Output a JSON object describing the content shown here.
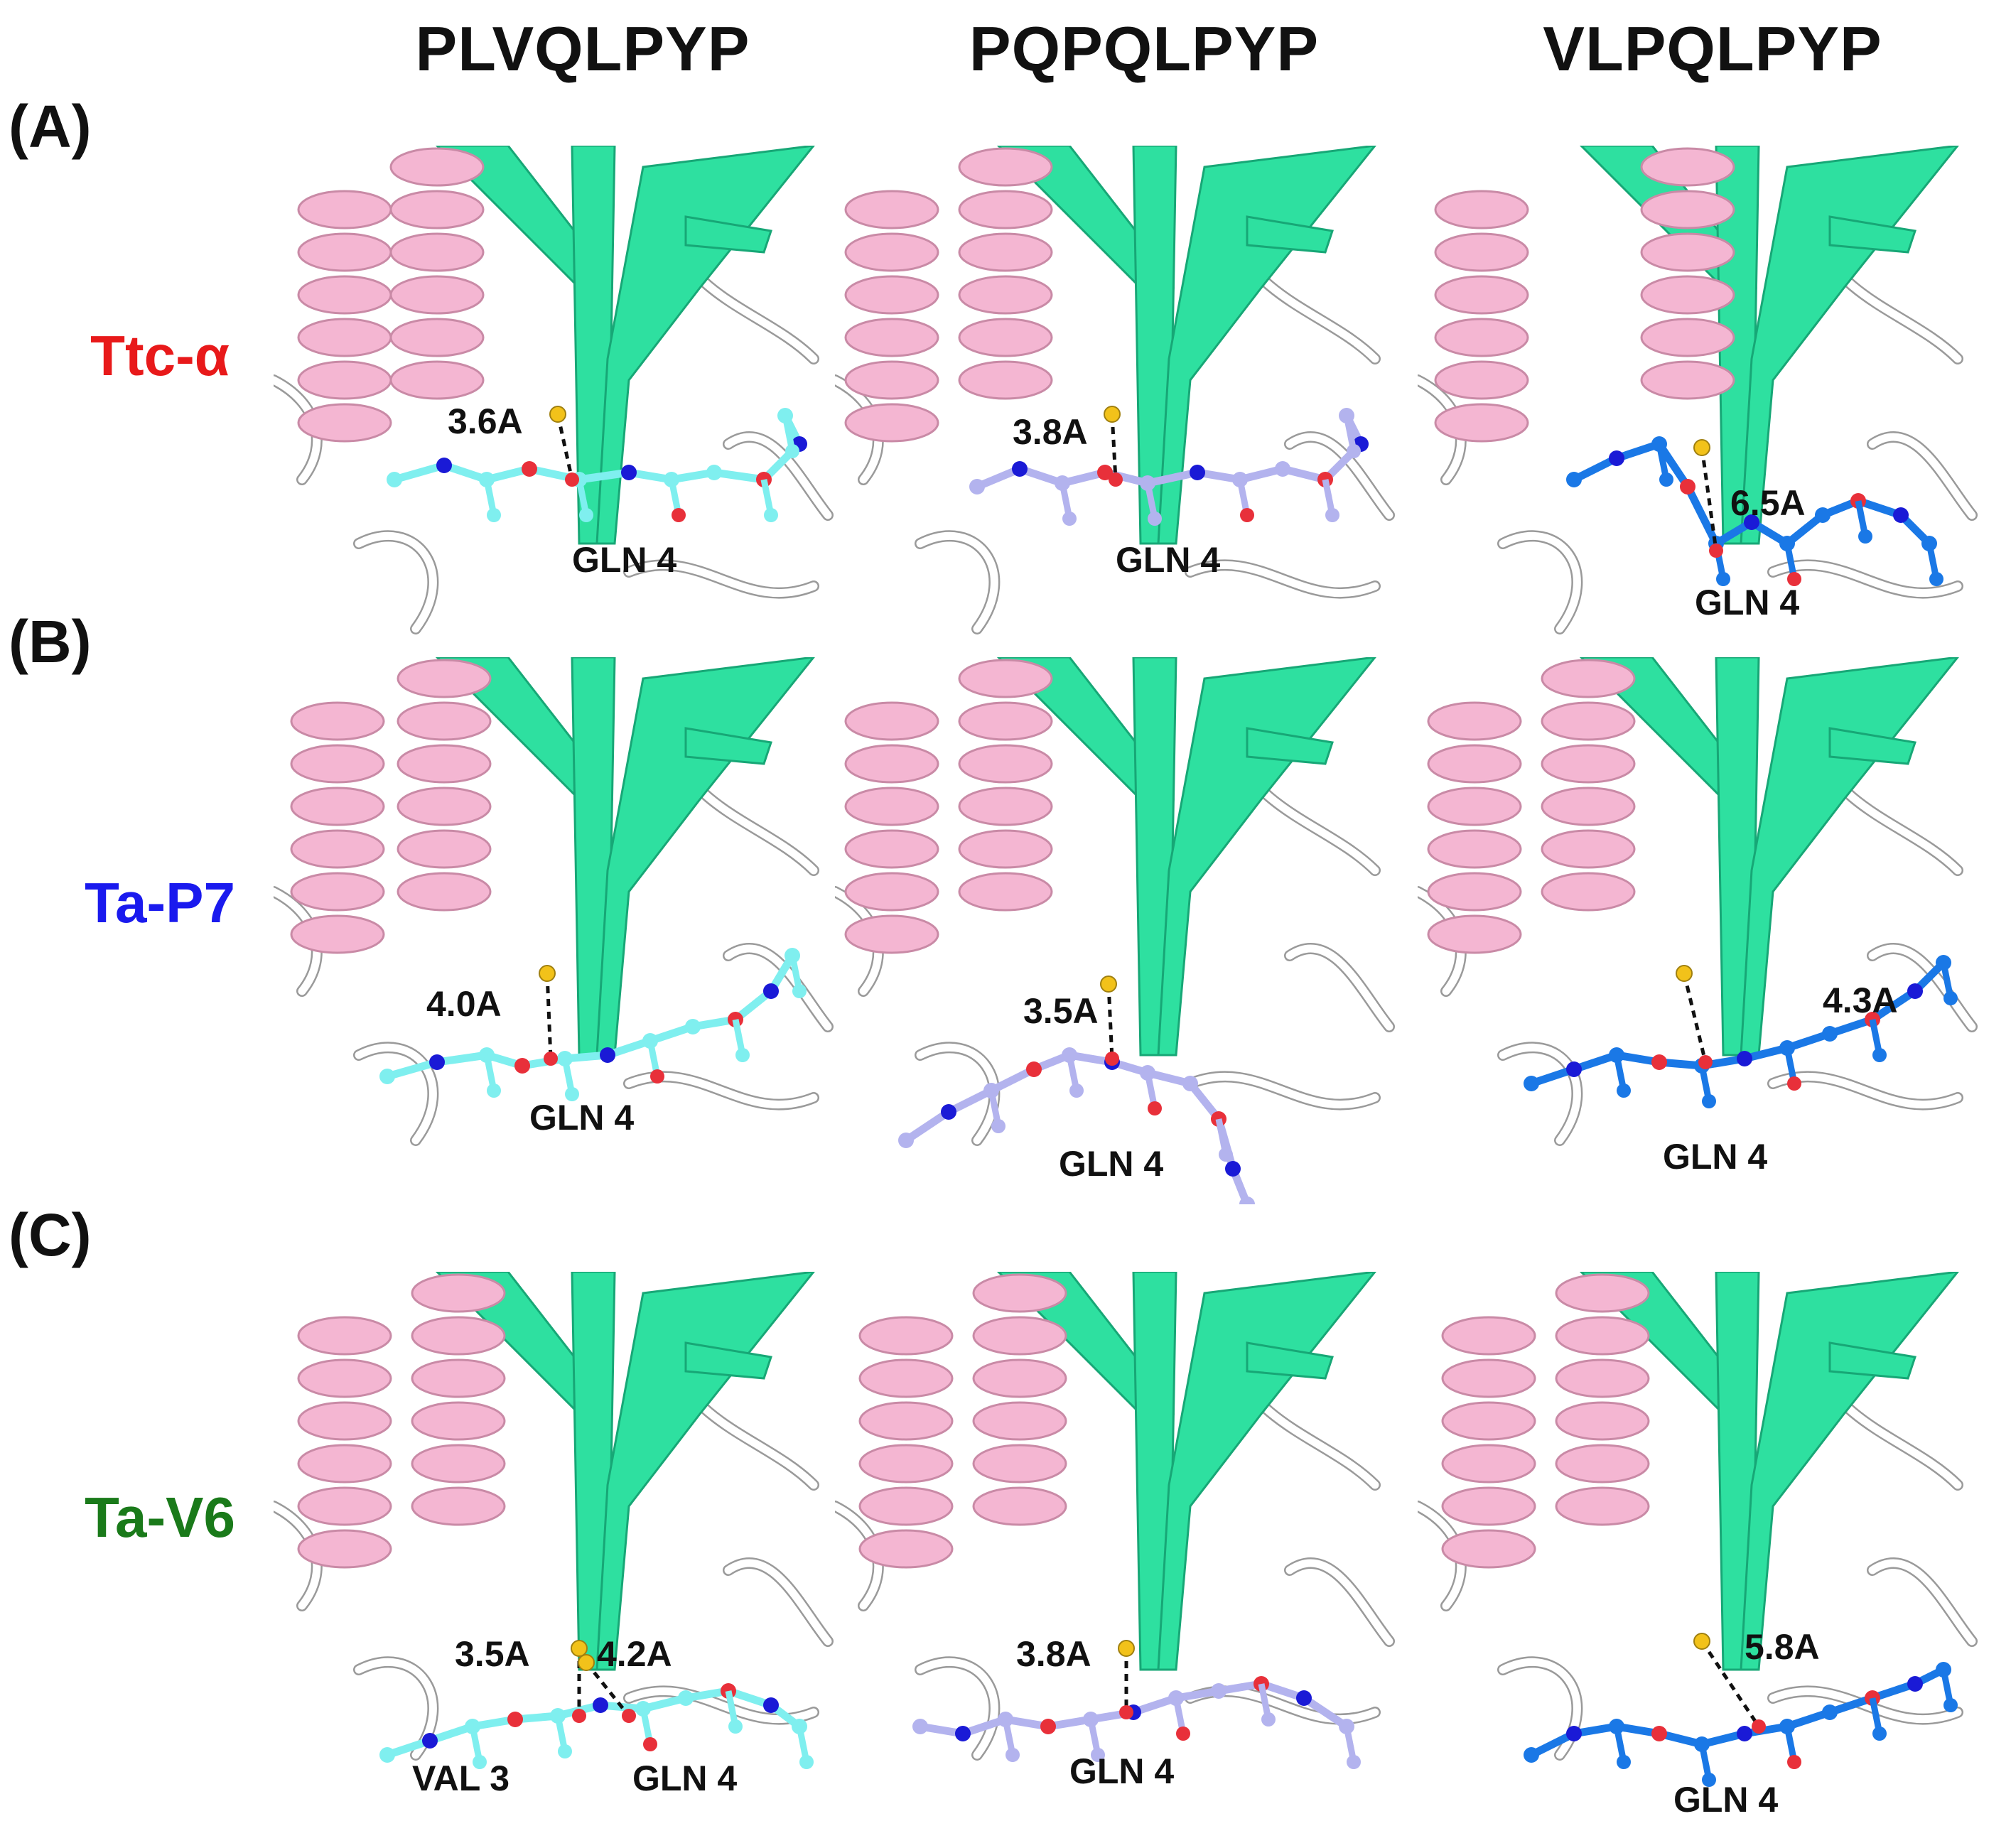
{
  "columns": [
    "PLVQLPYP",
    "PQPQLPYP",
    "VLPQLPYP"
  ],
  "rows": [
    {
      "letter": "(A)",
      "name": "Ttc-α",
      "name_color": "#e8191a"
    },
    {
      "letter": "(B)",
      "name": "Ta-P7",
      "name_color": "#1a1aee"
    },
    {
      "letter": "(C)",
      "name": "Ta-V6",
      "name_color": "#1a7a1a"
    }
  ],
  "panels": [
    {
      "distances": [
        "3.6A"
      ],
      "residues": [
        "GLN 4"
      ]
    },
    {
      "distances": [
        "3.8A"
      ],
      "residues": [
        "GLN 4"
      ]
    },
    {
      "distances": [
        "6.5A"
      ],
      "residues": [
        "GLN 4"
      ]
    },
    {
      "distances": [
        "4.0A"
      ],
      "residues": [
        "GLN 4"
      ]
    },
    {
      "distances": [
        "3.5A"
      ],
      "residues": [
        "GLN 4"
      ]
    },
    {
      "distances": [
        "4.3A"
      ],
      "residues": [
        "GLN 4"
      ]
    },
    {
      "distances": [
        "3.5A",
        "4.2A"
      ],
      "residues": [
        "VAL 3",
        "GLN 4"
      ]
    },
    {
      "distances": [
        "3.8A"
      ],
      "residues": [
        "GLN 4"
      ]
    },
    {
      "distances": [
        "5.8A"
      ],
      "residues": [
        "GLN 4"
      ]
    }
  ],
  "colors": {
    "helix": "#f4b6d2",
    "sheet": "#2ee0a0",
    "coil": "#ffffff",
    "ligand_plvqlpyp": "#7fefef",
    "ligand_pqpqlpyp": "#b3b3ee",
    "ligand_vlpqlpyp": "#1a78e6",
    "oxygen": "#e8303a",
    "nitrogen": "#1a1ad6",
    "sulfur": "#f2c21a"
  }
}
